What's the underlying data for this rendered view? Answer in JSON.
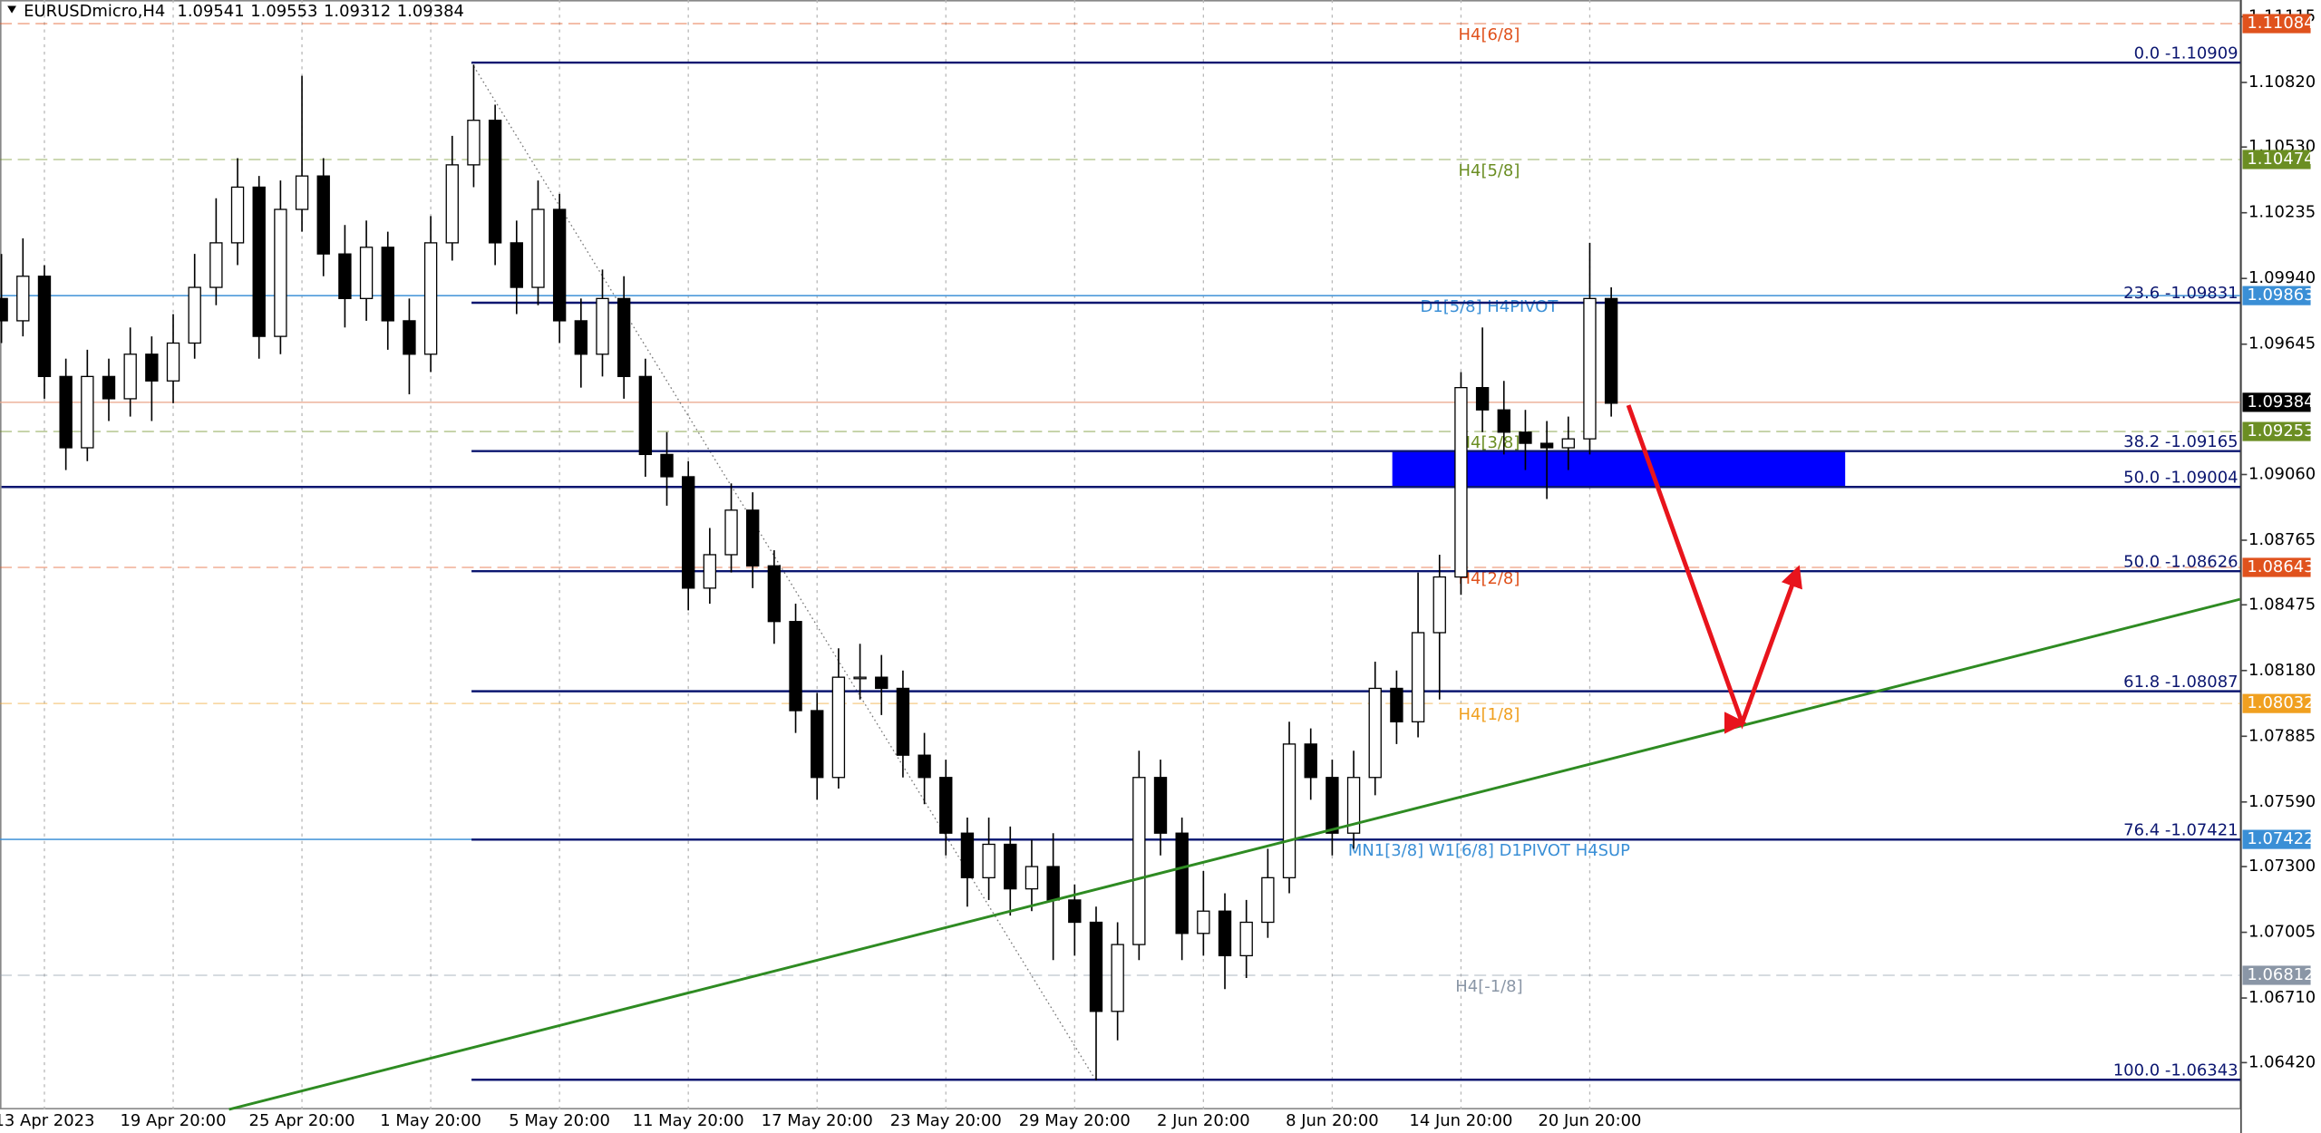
{
  "chart_data": {
    "type": "candlestick",
    "symbol": "EURUSDmicro,H4",
    "quote": [
      1.09541,
      1.09553,
      1.09312,
      1.09384
    ],
    "categories": [
      null,
      null,
      "13 Apr 2023",
      null,
      null,
      null,
      null,
      null,
      "19 Apr 20:00",
      null,
      null,
      null,
      null,
      null,
      "25 Apr 20:00",
      null,
      null,
      null,
      null,
      null,
      "1 May 20:00",
      null,
      null,
      null,
      null,
      null,
      "5 May 20:00",
      null,
      null,
      null,
      null,
      null,
      "11 May 20:00",
      null,
      null,
      null,
      null,
      null,
      "17 May 20:00",
      null,
      null,
      null,
      null,
      null,
      "23 May 20:00",
      null,
      null,
      null,
      null,
      null,
      "29 May 20:00",
      null,
      null,
      null,
      null,
      null,
      "2 Jun 20:00",
      null,
      null,
      null,
      null,
      null,
      "8 Jun 20:00",
      null,
      null,
      null,
      null,
      null,
      "14 Jun 20:00",
      null,
      null,
      null,
      null,
      null,
      "20 Jun 20:00",
      null
    ],
    "open": [
      1.0985,
      1.0975,
      1.0995,
      1.095,
      1.0918,
      1.095,
      1.094,
      1.096,
      1.0948,
      1.0965,
      1.099,
      1.101,
      1.1035,
      1.0968,
      1.1025,
      1.104,
      1.1005,
      1.0985,
      1.1008,
      1.0975,
      1.096,
      1.101,
      1.1045,
      1.1065,
      1.101,
      1.099,
      1.1025,
      1.0975,
      1.096,
      1.0985,
      1.095,
      1.0915,
      1.0905,
      1.0855,
      1.087,
      1.089,
      1.0865,
      1.084,
      1.08,
      1.077,
      1.0815,
      1.0815,
      1.081,
      1.078,
      1.077,
      1.0745,
      1.0725,
      1.074,
      1.072,
      1.073,
      1.0715,
      1.0705,
      1.0665,
      1.0695,
      1.077,
      1.0745,
      1.07,
      1.071,
      1.069,
      1.0705,
      1.0725,
      1.0785,
      1.077,
      1.0745,
      1.077,
      1.081,
      1.0795,
      1.0835,
      1.086,
      1.0945,
      1.0935,
      1.0925,
      1.092,
      1.0918,
      1.0922,
      1.0985
    ],
    "high": [
      1.1005,
      1.1012,
      1.1,
      1.0958,
      1.0962,
      1.0958,
      1.0972,
      1.0968,
      1.0978,
      1.1005,
      1.103,
      1.1048,
      1.104,
      1.1038,
      1.1085,
      1.1048,
      1.1018,
      1.102,
      1.1015,
      1.0985,
      1.1022,
      1.1058,
      1.109,
      1.1072,
      1.102,
      1.1038,
      1.1032,
      1.0985,
      1.0998,
      1.0995,
      1.0958,
      1.0925,
      1.0912,
      1.0882,
      1.0902,
      1.0898,
      1.0872,
      1.0848,
      1.0808,
      1.0828,
      1.083,
      1.0825,
      1.0818,
      1.079,
      1.0778,
      1.0752,
      1.0752,
      1.0748,
      1.0742,
      1.0745,
      1.0722,
      1.0712,
      1.0705,
      1.0782,
      1.0778,
      1.0752,
      1.0728,
      1.0718,
      1.0715,
      1.0738,
      1.0795,
      1.0792,
      1.0778,
      1.0782,
      1.0822,
      1.0818,
      1.0862,
      1.087,
      1.0952,
      1.0972,
      1.0948,
      1.0935,
      1.093,
      1.0932,
      1.101,
      1.099
    ],
    "low": [
      1.0965,
      1.0968,
      1.094,
      1.0908,
      1.0912,
      1.093,
      1.0932,
      1.093,
      1.0938,
      1.0958,
      1.0982,
      1.1,
      1.0958,
      1.096,
      1.1015,
      1.0995,
      1.0972,
      1.0975,
      1.0962,
      1.0942,
      1.0952,
      1.1002,
      1.1035,
      1.1,
      1.0978,
      1.0982,
      1.0965,
      1.0945,
      1.095,
      1.094,
      1.0905,
      1.0892,
      1.0845,
      1.0848,
      1.0862,
      1.0855,
      1.083,
      1.079,
      1.076,
      1.0765,
      1.0805,
      1.0798,
      1.077,
      1.0758,
      1.0735,
      1.0712,
      1.0715,
      1.0708,
      1.071,
      1.0688,
      1.069,
      1.0634,
      1.0652,
      1.0688,
      1.0735,
      1.0688,
      1.069,
      1.0675,
      1.068,
      1.0698,
      1.0718,
      1.076,
      1.0735,
      1.0738,
      1.0762,
      1.0785,
      1.0788,
      1.0805,
      1.0852,
      1.0925,
      1.0915,
      1.0908,
      1.0895,
      1.0908,
      1.0915,
      1.0932
    ],
    "close": [
      1.0975,
      1.0995,
      1.095,
      1.0918,
      1.095,
      1.094,
      1.096,
      1.0948,
      1.0965,
      1.099,
      1.101,
      1.1035,
      1.0968,
      1.1025,
      1.104,
      1.1005,
      1.0985,
      1.1008,
      1.0975,
      1.096,
      1.101,
      1.1045,
      1.1065,
      1.101,
      1.099,
      1.1025,
      1.0975,
      1.096,
      1.0985,
      1.095,
      1.0915,
      1.0905,
      1.0855,
      1.087,
      1.089,
      1.0865,
      1.084,
      1.08,
      1.077,
      1.0815,
      1.0815,
      1.081,
      1.078,
      1.077,
      1.0745,
      1.0725,
      1.074,
      1.072,
      1.073,
      1.0715,
      1.0705,
      1.0665,
      1.0695,
      1.077,
      1.0745,
      1.07,
      1.071,
      1.069,
      1.0705,
      1.0725,
      1.0785,
      1.077,
      1.0745,
      1.077,
      1.081,
      1.0795,
      1.0835,
      1.086,
      1.0945,
      1.0935,
      1.0925,
      1.092,
      1.0918,
      1.0922,
      1.0985,
      1.0938
    ],
    "ylim": [
      1.0621,
      1.1119
    ],
    "yticks": [
      1.11115,
      {
        "value": 1.1082,
        "label": "1.10820"
      },
      {
        "value": 1.1053,
        "label": "1.10530"
      },
      1.10235,
      {
        "value": 1.0994,
        "label": "1.09940"
      },
      1.09645,
      {
        "value": 1.0906,
        "label": "1.09060"
      },
      1.08765,
      1.08475,
      {
        "value": 1.0818,
        "label": "1.08180"
      },
      1.07885,
      {
        "value": 1.0759,
        "label": "1.07590"
      },
      {
        "value": 1.073,
        "label": "1.07300"
      },
      1.07005,
      {
        "value": 1.0671,
        "label": "1.06710"
      },
      {
        "value": 1.0642,
        "label": "1.06420"
      }
    ],
    "fib_color": "#0b1670",
    "fib_levels": [
      {
        "label": "0.0 -1.10909",
        "price": 1.10909,
        "start": 21.9
      },
      {
        "label": "23.6 -1.09831",
        "price": 1.09831,
        "start": 21.9
      },
      {
        "label": "38.2 -1.09165",
        "price": 1.09165,
        "start": 21.9
      },
      {
        "label": "50.0 -1.09004",
        "price": 1.09004,
        "start": 0
      },
      {
        "label": "50.0 -1.08626",
        "price": 1.08626,
        "start": 21.9
      },
      {
        "label": "61.8 -1.08087",
        "price": 1.08087,
        "start": 21.9
      },
      {
        "label": "76.4 -1.07421",
        "price": 1.07421,
        "start": 21.9
      },
      {
        "label": "100.0 -1.06343",
        "price": 1.06343,
        "start": 21.9
      }
    ],
    "fib_anchor": {
      "x": [
        21.9,
        50.97
      ],
      "y": [
        1.10909,
        1.06343
      ]
    },
    "levels": [
      {
        "label": "H4[6/8]",
        "price": 1.11084,
        "color": "#e0521d",
        "dashed": true
      },
      {
        "label": "H4[5/8]",
        "price": 1.10474,
        "color": "#6b8e23",
        "dashed": true
      },
      {
        "label": "D1[5/8] H4PIVOT",
        "price": 1.09863,
        "color": "#3a8fd6",
        "dashed": false
      },
      {
        "label": "H4[3/8]",
        "price": 1.09253,
        "color": "#6b8e23",
        "dashed": true
      },
      {
        "label": "H4[2/8]",
        "price": 1.08643,
        "color": "#e0521d",
        "dashed": true
      },
      {
        "label": "H4[1/8]",
        "price": 1.08032,
        "color": "#f0a020",
        "dashed": true
      },
      {
        "label": "MN1[3/8] W1[6/8] D1PIVOT H4SUP",
        "price": 1.07422,
        "color": "#3a8fd6",
        "dashed": false
      },
      {
        "label": "H4[-1/8]",
        "price": 1.06812,
        "color": "#8a96a6",
        "dashed": true
      }
    ],
    "current_price": 1.09384,
    "zone": {
      "x": [
        64.8,
        85.9
      ],
      "y": [
        1.09165,
        1.09004
      ],
      "color": "#0000ff"
    },
    "trendline": {
      "x": [
        10.6,
        104.3
      ],
      "y": [
        1.0621,
        1.085
      ],
      "color": "#2e8b22"
    },
    "projection": {
      "x": [
        75.8,
        81.1,
        83.7
      ],
      "y": [
        1.09371,
        1.07945,
        1.08635
      ],
      "color": "#e8141c"
    }
  }
}
